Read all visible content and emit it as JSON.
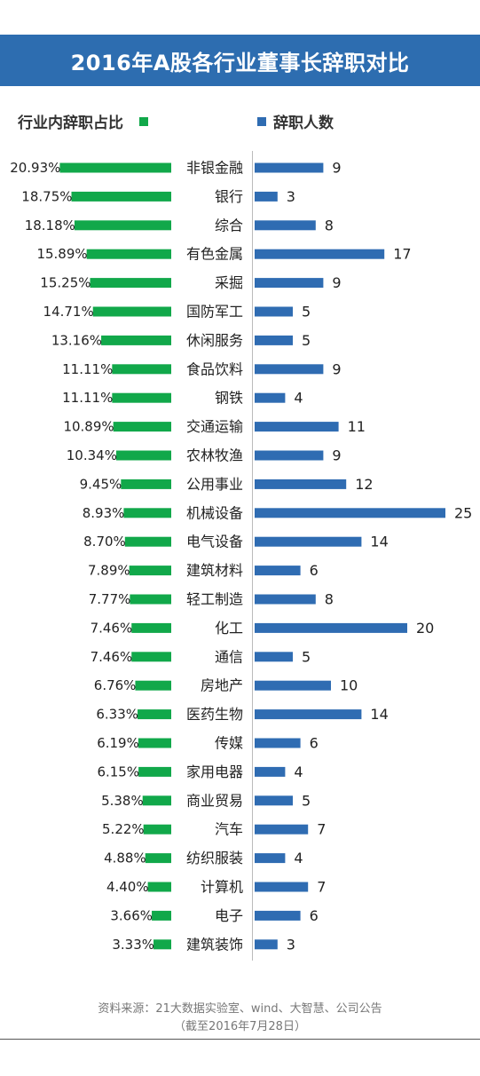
{
  "title": "2016年A股各行业董事长辞职对比",
  "legend": {
    "left_label": "行业内辞职占比",
    "right_label": "辞职人数"
  },
  "colors": {
    "title_bg": "#2d6db0",
    "green": "#11a84a",
    "blue": "#2f6cb2"
  },
  "source_line1": "资料来源：21大数据实验室、wind、大智慧、公司公告",
  "source_line2": "（截至2016年7月28日）",
  "chart_data": {
    "type": "bar",
    "title": "2016年A股各行业董事长辞职对比",
    "categories": [
      "非银金融",
      "银行",
      "综合",
      "有色金属",
      "采掘",
      "国防军工",
      "休闲服务",
      "食品饮料",
      "钢铁",
      "交通运输",
      "农林牧渔",
      "公用事业",
      "机械设备",
      "电气设备",
      "建筑材料",
      "轻工制造",
      "化工",
      "通信",
      "房地产",
      "医药生物",
      "传媒",
      "家用电器",
      "商业贸易",
      "汽车",
      "纺织服装",
      "计算机",
      "电子",
      "建筑装饰"
    ],
    "series": [
      {
        "name": "行业内辞职占比",
        "values": [
          20.93,
          18.75,
          18.18,
          15.89,
          15.25,
          14.71,
          13.16,
          11.11,
          11.11,
          10.89,
          10.34,
          9.45,
          8.93,
          8.7,
          7.89,
          7.77,
          7.46,
          7.46,
          6.76,
          6.33,
          6.19,
          6.15,
          5.38,
          5.22,
          4.88,
          4.4,
          3.66,
          3.33
        ],
        "labels": [
          "20.93%",
          "18.75%",
          "18.18%",
          "15.89%",
          "15.25%",
          "14.71%",
          "13.16%",
          "11.11%",
          "11.11%",
          "10.89%",
          "10.34%",
          "9.45%",
          "8.93%",
          "8.70%",
          "7.89%",
          "7.77%",
          "7.46%",
          "7.46%",
          "6.76%",
          "6.33%",
          "6.19%",
          "6.15%",
          "5.38%",
          "5.22%",
          "4.88%",
          "4.40%",
          "3.66%",
          "3.33%"
        ]
      },
      {
        "name": "辞职人数",
        "values": [
          9,
          3,
          8,
          17,
          9,
          5,
          5,
          9,
          4,
          11,
          9,
          12,
          25,
          14,
          6,
          8,
          20,
          5,
          10,
          14,
          6,
          4,
          5,
          7,
          4,
          7,
          6,
          3
        ]
      }
    ],
    "legend": "top"
  }
}
